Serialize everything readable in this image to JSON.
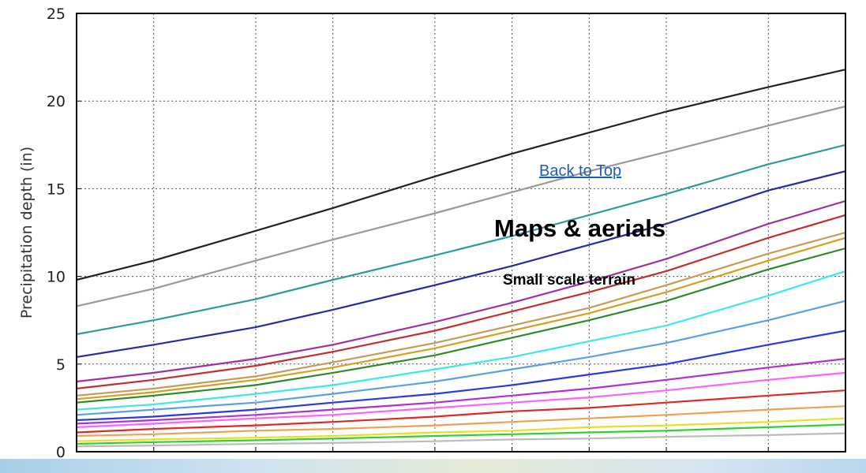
{
  "overlays": {
    "back_to_top": "Back to Top",
    "maps_heading": "Maps & aerials",
    "terrain_label": "Small scale terrain"
  },
  "chart_data": {
    "type": "line",
    "title": "",
    "xlabel": "",
    "ylabel": "Precipitation depth (in)",
    "xscale": "log",
    "x": [
      1,
      2,
      5,
      10,
      25,
      50,
      100,
      200,
      500,
      1000
    ],
    "xticks": [
      "1",
      "2",
      "5",
      "10",
      "25",
      "50",
      "100",
      "200",
      "500",
      "1000"
    ],
    "yticks": [
      0,
      5,
      10,
      15,
      20,
      25
    ],
    "xlim": [
      1,
      1000
    ],
    "ylim": [
      0,
      25
    ],
    "grid": true,
    "series": [
      {
        "color": "#222222",
        "values": [
          9.8,
          10.9,
          12.6,
          13.9,
          15.7,
          17.0,
          18.2,
          19.4,
          20.8,
          21.8
        ]
      },
      {
        "color": "#999999",
        "values": [
          8.3,
          9.3,
          10.9,
          12.1,
          13.6,
          14.8,
          16.0,
          17.1,
          18.6,
          19.7
        ]
      },
      {
        "color": "#2e9b9b",
        "values": [
          6.7,
          7.5,
          8.7,
          9.8,
          11.2,
          12.3,
          13.5,
          14.7,
          16.4,
          17.5
        ]
      },
      {
        "color": "#2a2aa0",
        "values": [
          5.4,
          6.1,
          7.1,
          8.1,
          9.5,
          10.6,
          11.8,
          13.0,
          14.9,
          16.0
        ]
      },
      {
        "color": "#a030a0",
        "values": [
          4.0,
          4.5,
          5.3,
          6.1,
          7.4,
          8.5,
          9.7,
          11.0,
          13.0,
          14.3
        ]
      },
      {
        "color": "#c03030",
        "values": [
          3.6,
          4.1,
          4.9,
          5.7,
          6.9,
          8.0,
          9.1,
          10.3,
          12.2,
          13.5
        ]
      },
      {
        "color": "#c89a5a",
        "values": [
          3.2,
          3.6,
          4.3,
          5.1,
          6.2,
          7.2,
          8.2,
          9.5,
          11.3,
          12.5
        ]
      },
      {
        "color": "#d4a020",
        "values": [
          3.0,
          3.4,
          4.1,
          4.8,
          5.9,
          6.9,
          7.9,
          9.1,
          10.9,
          12.2
        ]
      },
      {
        "color": "#2c8a2c",
        "values": [
          2.8,
          3.2,
          3.8,
          4.5,
          5.5,
          6.5,
          7.5,
          8.6,
          10.4,
          11.6
        ]
      },
      {
        "color": "#3de8e8",
        "values": [
          2.4,
          2.7,
          3.3,
          3.8,
          4.7,
          5.4,
          6.3,
          7.2,
          8.9,
          10.3
        ]
      },
      {
        "color": "#5aa0e8",
        "values": [
          2.1,
          2.4,
          2.8,
          3.3,
          4.0,
          4.7,
          5.4,
          6.2,
          7.5,
          8.6
        ]
      },
      {
        "color": "#2a3ae0",
        "values": [
          1.8,
          2.0,
          2.4,
          2.8,
          3.3,
          3.8,
          4.4,
          5.0,
          6.1,
          6.9
        ]
      },
      {
        "color": "#b030d0",
        "values": [
          1.6,
          1.8,
          2.1,
          2.4,
          2.8,
          3.2,
          3.6,
          4.1,
          4.8,
          5.3
        ]
      },
      {
        "color": "#ff60ff",
        "values": [
          1.4,
          1.6,
          1.9,
          2.1,
          2.5,
          2.8,
          3.1,
          3.5,
          4.1,
          4.5
        ]
      },
      {
        "color": "#e02828",
        "values": [
          1.1,
          1.3,
          1.5,
          1.7,
          2.0,
          2.3,
          2.5,
          2.8,
          3.2,
          3.5
        ]
      },
      {
        "color": "#f0a050",
        "values": [
          0.9,
          1.0,
          1.2,
          1.3,
          1.5,
          1.7,
          1.9,
          2.1,
          2.4,
          2.6
        ]
      },
      {
        "color": "#e8e020",
        "values": [
          0.6,
          0.7,
          0.8,
          0.9,
          1.1,
          1.2,
          1.4,
          1.5,
          1.7,
          1.9
        ]
      },
      {
        "color": "#30d030",
        "values": [
          0.45,
          0.55,
          0.65,
          0.75,
          0.9,
          1.0,
          1.1,
          1.2,
          1.4,
          1.55
        ]
      },
      {
        "color": "#bbbbbb",
        "values": [
          0.3,
          0.35,
          0.45,
          0.5,
          0.6,
          0.7,
          0.75,
          0.85,
          0.95,
          1.05
        ]
      }
    ]
  }
}
